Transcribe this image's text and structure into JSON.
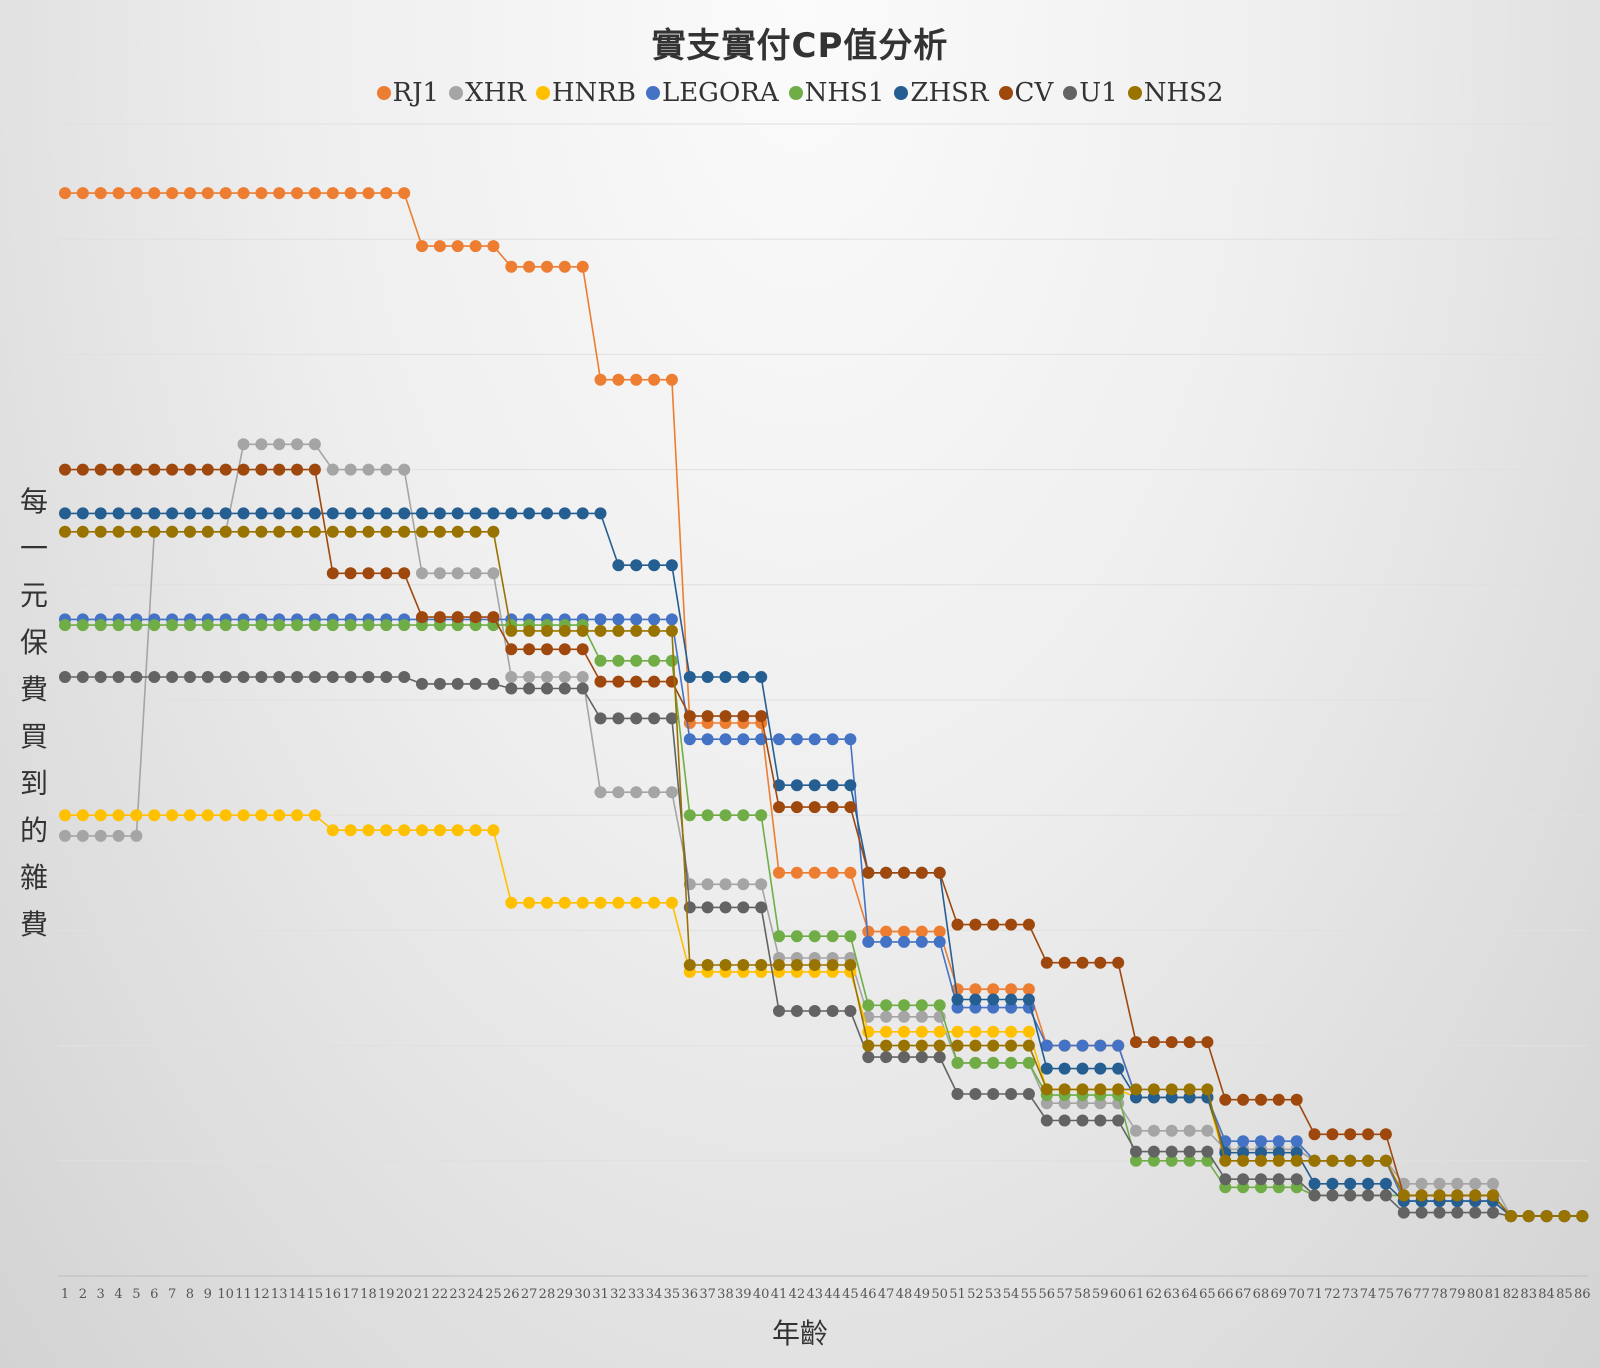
{
  "chart_data": {
    "type": "line",
    "title": "實支實付CP值分析",
    "xlabel": "年齡",
    "ylabel": "每一元保費買到的雜費",
    "legend_position": "top",
    "grid": "horizontal",
    "ylim": [
      0,
      10
    ],
    "x": [
      1,
      2,
      3,
      4,
      5,
      6,
      7,
      8,
      9,
      10,
      11,
      12,
      13,
      14,
      15,
      16,
      17,
      18,
      19,
      20,
      21,
      22,
      23,
      24,
      25,
      26,
      27,
      28,
      29,
      30,
      31,
      32,
      33,
      34,
      35,
      36,
      37,
      38,
      39,
      40,
      41,
      42,
      43,
      44,
      45,
      46,
      47,
      48,
      49,
      50,
      51,
      52,
      53,
      54,
      55,
      56,
      57,
      58,
      59,
      60,
      61,
      62,
      63,
      64,
      65,
      66,
      67,
      68,
      69,
      70,
      71,
      72,
      73,
      74,
      75,
      76,
      77,
      78,
      79,
      80,
      81,
      82,
      83,
      84,
      85,
      86
    ],
    "series": [
      {
        "name": "RJ1",
        "color": "#ED7D31",
        "segments": [
          [
            1,
            20,
            9.4
          ],
          [
            21,
            25,
            8.94
          ],
          [
            26,
            30,
            8.76
          ],
          [
            31,
            35,
            7.78
          ],
          [
            36,
            40,
            4.8
          ],
          [
            41,
            45,
            3.5
          ],
          [
            46,
            50,
            2.99
          ],
          [
            51,
            55,
            2.49
          ],
          [
            56,
            60,
            2.0
          ],
          [
            61,
            65,
            1.55
          ],
          [
            66,
            70,
            1.1
          ],
          [
            71,
            75,
            1.0
          ],
          [
            76,
            81,
            0.7
          ],
          [
            82,
            86,
            0.52
          ]
        ]
      },
      {
        "name": "XHR",
        "color": "#A5A5A5",
        "segments": [
          [
            1,
            5,
            3.82
          ],
          [
            6,
            10,
            6.46
          ],
          [
            11,
            15,
            7.22
          ],
          [
            16,
            20,
            7.0
          ],
          [
            21,
            25,
            6.1
          ],
          [
            26,
            30,
            5.2
          ],
          [
            31,
            35,
            4.2
          ],
          [
            36,
            40,
            3.4
          ],
          [
            41,
            45,
            2.76
          ],
          [
            46,
            50,
            2.25
          ],
          [
            51,
            55,
            1.85
          ],
          [
            56,
            60,
            1.5
          ],
          [
            61,
            65,
            1.26
          ],
          [
            66,
            70,
            1.1
          ],
          [
            71,
            75,
            1.0
          ],
          [
            76,
            81,
            0.8
          ],
          [
            82,
            86,
            0.52
          ]
        ]
      },
      {
        "name": "HNRB",
        "color": "#FFC000",
        "segments": [
          [
            1,
            15,
            4.0
          ],
          [
            16,
            25,
            3.87
          ],
          [
            26,
            35,
            3.24
          ],
          [
            36,
            45,
            2.64
          ],
          [
            46,
            55,
            2.12
          ],
          [
            56,
            60,
            1.62
          ],
          [
            61,
            65,
            1.55
          ],
          [
            66,
            70,
            1.0
          ],
          [
            71,
            75,
            1.0
          ],
          [
            76,
            81,
            0.7
          ],
          [
            82,
            86,
            0.52
          ]
        ]
      },
      {
        "name": "LEGORA",
        "color": "#4472C4",
        "segments": [
          [
            1,
            35,
            5.7
          ],
          [
            36,
            45,
            4.66
          ],
          [
            46,
            50,
            2.9
          ],
          [
            51,
            55,
            2.33
          ],
          [
            56,
            60,
            2.0
          ],
          [
            61,
            65,
            1.55
          ],
          [
            66,
            70,
            1.17
          ],
          [
            71,
            75,
            1.0
          ],
          [
            76,
            81,
            0.65
          ],
          [
            82,
            86,
            0.52
          ]
        ]
      },
      {
        "name": "NHS1",
        "color": "#70AD47",
        "segments": [
          [
            1,
            30,
            5.65
          ],
          [
            31,
            35,
            5.34
          ],
          [
            36,
            40,
            4.0
          ],
          [
            41,
            45,
            2.95
          ],
          [
            46,
            50,
            2.35
          ],
          [
            51,
            55,
            1.85
          ],
          [
            56,
            60,
            1.57
          ],
          [
            61,
            65,
            1.0
          ],
          [
            66,
            70,
            0.77
          ],
          [
            71,
            75,
            0.7
          ],
          [
            76,
            81,
            0.7
          ],
          [
            82,
            86,
            0.52
          ]
        ]
      },
      {
        "name": "ZHSR",
        "color": "#255E91",
        "segments": [
          [
            1,
            31,
            6.62
          ],
          [
            32,
            35,
            6.17
          ],
          [
            36,
            40,
            5.2
          ],
          [
            41,
            45,
            4.26
          ],
          [
            46,
            50,
            3.5
          ],
          [
            51,
            55,
            2.4
          ],
          [
            56,
            60,
            1.8
          ],
          [
            61,
            65,
            1.55
          ],
          [
            66,
            70,
            1.07
          ],
          [
            71,
            75,
            0.8
          ],
          [
            76,
            81,
            0.65
          ],
          [
            82,
            86,
            0.52
          ]
        ]
      },
      {
        "name": "CV",
        "color": "#9E480E",
        "segments": [
          [
            1,
            15,
            7.0
          ],
          [
            16,
            20,
            6.1
          ],
          [
            21,
            25,
            5.72
          ],
          [
            26,
            30,
            5.44
          ],
          [
            31,
            35,
            5.16
          ],
          [
            36,
            40,
            4.86
          ],
          [
            41,
            45,
            4.07
          ],
          [
            46,
            50,
            3.5
          ],
          [
            51,
            55,
            3.05
          ],
          [
            56,
            60,
            2.72
          ],
          [
            61,
            65,
            2.03
          ],
          [
            66,
            70,
            1.53
          ],
          [
            71,
            75,
            1.23
          ],
          [
            76,
            81,
            0.7
          ],
          [
            82,
            86,
            0.52
          ]
        ]
      },
      {
        "name": "U1",
        "color": "#636363",
        "segments": [
          [
            1,
            20,
            5.2
          ],
          [
            21,
            25,
            5.14
          ],
          [
            26,
            30,
            5.1
          ],
          [
            31,
            35,
            4.84
          ],
          [
            36,
            40,
            3.2
          ],
          [
            41,
            45,
            2.3
          ],
          [
            46,
            50,
            1.9
          ],
          [
            51,
            55,
            1.58
          ],
          [
            56,
            60,
            1.35
          ],
          [
            61,
            65,
            1.08
          ],
          [
            66,
            70,
            0.84
          ],
          [
            71,
            75,
            0.7
          ],
          [
            76,
            81,
            0.55
          ],
          [
            82,
            86,
            0.52
          ]
        ]
      },
      {
        "name": "NHS2",
        "color": "#997300",
        "segments": [
          [
            1,
            25,
            6.46
          ],
          [
            26,
            35,
            5.6
          ],
          [
            36,
            45,
            2.7
          ],
          [
            46,
            55,
            2.0
          ],
          [
            56,
            65,
            1.62
          ],
          [
            66,
            75,
            1.0
          ],
          [
            76,
            81,
            0.7
          ],
          [
            82,
            86,
            0.52
          ]
        ]
      }
    ]
  }
}
